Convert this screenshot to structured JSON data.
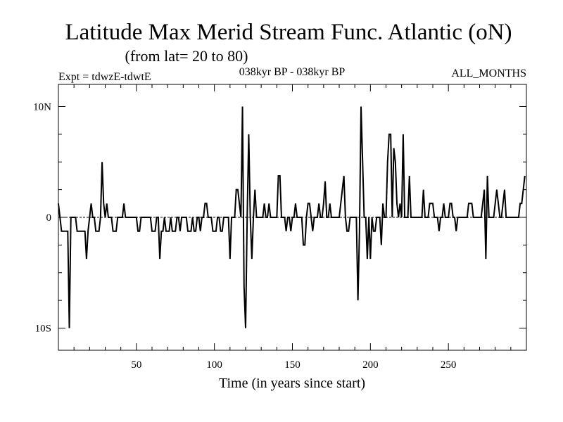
{
  "chart_data": {
    "type": "line",
    "title": "Latitude Max Merid Stream Func. Atlantic (oN)",
    "subtitle": "(from lat= 20 to 80)",
    "expt_label": "Expt = tdwzE-tdwtE",
    "period_label": "038kyr BP - 038kyr BP",
    "months_label": "ALL_MONTHS",
    "xlabel": "Time (in years since start)",
    "ylabel": "",
    "xlim": [
      0,
      300
    ],
    "ylim": [
      -12,
      12
    ],
    "x_ticks": [
      50,
      100,
      150,
      200,
      250
    ],
    "y_ticks": [
      {
        "value": 10,
        "label": "10N"
      },
      {
        "value": 0,
        "label": "0"
      },
      {
        "value": -10,
        "label": "10S"
      }
    ],
    "line_color": "#000000",
    "zero_line": true,
    "series": [
      {
        "x": [
          0,
          1,
          2,
          3,
          4,
          5,
          6,
          7,
          8,
          9,
          10,
          11,
          12,
          13,
          14,
          15,
          16,
          17,
          18,
          19,
          20,
          21,
          22,
          23,
          24,
          25,
          26,
          27,
          28,
          29,
          30,
          31,
          32,
          33,
          34,
          35,
          36,
          37,
          38,
          39,
          40,
          41,
          42,
          43,
          44,
          45,
          46,
          47,
          48,
          49,
          50,
          51,
          52,
          53,
          54,
          55,
          56,
          57,
          58,
          59,
          60,
          61,
          62,
          63,
          64,
          65,
          66,
          67,
          68,
          69,
          70,
          71,
          72,
          73,
          74,
          75,
          76,
          77,
          78,
          79,
          80,
          81,
          82,
          83,
          84,
          85,
          86,
          87,
          88,
          89,
          90,
          91,
          92,
          93,
          94,
          95,
          96,
          97,
          98,
          99,
          100,
          101,
          102,
          103,
          104,
          105,
          106,
          107,
          108,
          109,
          110,
          111,
          112,
          113,
          114,
          115,
          116,
          117,
          118,
          119,
          120,
          121,
          122,
          123,
          124,
          125,
          126,
          127,
          128,
          129,
          130,
          131,
          132,
          133,
          134,
          135,
          136,
          137,
          138,
          139,
          140,
          141,
          142,
          143,
          144,
          145,
          146,
          147,
          148,
          149,
          150,
          151,
          152,
          153,
          154,
          155,
          156,
          157,
          158,
          159,
          160,
          161,
          162,
          163,
          164,
          165,
          166,
          167,
          168,
          169,
          170,
          171,
          172,
          173,
          174,
          175,
          176,
          177,
          178,
          179,
          180,
          181,
          182,
          183,
          184,
          185,
          186,
          187,
          188,
          189,
          190,
          191,
          192,
          193,
          194,
          195,
          196,
          197,
          198,
          199,
          200,
          201,
          202,
          203,
          204,
          205,
          206,
          207,
          208,
          209,
          210,
          211,
          212,
          213,
          214,
          215,
          216,
          217,
          218,
          219,
          220,
          221,
          222,
          223,
          224,
          225,
          226,
          227,
          228,
          229,
          230,
          231,
          232,
          233,
          234,
          235,
          236,
          237,
          238,
          239,
          240,
          241,
          242,
          243,
          244,
          245,
          246,
          247,
          248,
          249,
          250,
          251,
          252,
          253,
          254,
          255,
          256,
          257,
          258,
          259,
          260,
          261,
          262,
          263,
          264,
          265,
          266,
          267,
          268,
          269,
          270,
          271,
          272,
          273,
          274,
          275,
          276,
          277,
          278,
          279,
          280,
          281,
          282,
          283,
          284,
          285,
          286,
          287,
          288,
          289,
          290,
          291,
          292,
          293,
          294,
          295,
          296,
          297,
          298,
          299
        ],
        "y": [
          1.25,
          0,
          -1.25,
          -1.25,
          -1.25,
          -1.25,
          -1.25,
          -10,
          0,
          0,
          0,
          0,
          -1.25,
          -1.25,
          -1.25,
          -1.25,
          -1.25,
          -1.25,
          -3.75,
          -1.25,
          0,
          1.25,
          0,
          0,
          -1.25,
          -1.25,
          -1.25,
          0,
          5,
          1.25,
          0,
          1.25,
          0,
          0,
          0,
          -1.25,
          -1.25,
          -1.25,
          0,
          0,
          0,
          0,
          1.25,
          0,
          0,
          0,
          0,
          0,
          0,
          0,
          0,
          -1.25,
          -1.25,
          0,
          0,
          0,
          0,
          0,
          0,
          0,
          -1.25,
          -1.25,
          -1.25,
          0,
          0,
          -3.75,
          -1.25,
          -1.25,
          0,
          -1.25,
          -1.25,
          -1.25,
          0,
          -1.25,
          -1.25,
          -1.25,
          0,
          0,
          -1.25,
          0,
          0,
          0,
          0,
          -1.25,
          -1.25,
          -1.25,
          0,
          -1.25,
          -1.25,
          0,
          0,
          -1.25,
          0,
          0,
          1.25,
          1.25,
          0,
          0,
          0,
          -1.25,
          -1.25,
          -1.25,
          0,
          0,
          -1.25,
          -1.25,
          0,
          0,
          0,
          0,
          -3.75,
          0,
          0,
          0,
          2.5,
          2.5,
          1.25,
          0,
          10,
          -6.25,
          -10,
          0,
          7.5,
          0,
          -3.75,
          0,
          2.5,
          0,
          0,
          0,
          0,
          0,
          1.25,
          0,
          0,
          1.25,
          0,
          0,
          0,
          0,
          0,
          3.75,
          3.75,
          0,
          0,
          0,
          -1.25,
          0,
          0,
          -1.25,
          0,
          0,
          1.25,
          0,
          0,
          0,
          0,
          -2.5,
          -2.5,
          0,
          1.25,
          1.25,
          0,
          -1.25,
          0,
          0,
          0,
          1.25,
          0,
          0,
          1.25,
          3.25,
          0,
          0,
          1.25,
          0,
          0,
          0,
          0,
          0,
          0,
          1.25,
          2.5,
          3.75,
          0,
          -1.25,
          -1.25,
          0,
          0,
          0,
          0,
          0,
          -7.5,
          -1.25,
          10,
          5,
          0,
          0,
          -3.75,
          0,
          -3.75,
          0,
          -1.25,
          -1.25,
          0,
          0,
          0,
          -2.5,
          1.25,
          0,
          0,
          5,
          7.5,
          7.5,
          0,
          6.25,
          5,
          1.25,
          0,
          1.25,
          0,
          7.5,
          0,
          0,
          0,
          3.75,
          0,
          0,
          0,
          0,
          0,
          0,
          0,
          0,
          2.5,
          0,
          0,
          0,
          1.25,
          1.25,
          1.25,
          0,
          0,
          0,
          -1.25,
          0,
          0,
          1.25,
          0,
          0,
          0,
          1.25,
          1.25,
          0,
          0,
          -1.25,
          0,
          0,
          0,
          0,
          0,
          0,
          0,
          1.25,
          1.25,
          1.25,
          0,
          0,
          0,
          0,
          0,
          0,
          1.25,
          2.5,
          -3.75,
          3.75,
          0,
          0,
          0,
          0,
          1.25,
          2.5,
          1.25,
          0,
          0,
          1.25,
          2.5,
          0,
          0,
          0,
          0,
          0,
          0,
          0,
          0,
          0,
          1.25,
          1.25,
          2.5,
          3.75
        ]
      }
    ]
  }
}
